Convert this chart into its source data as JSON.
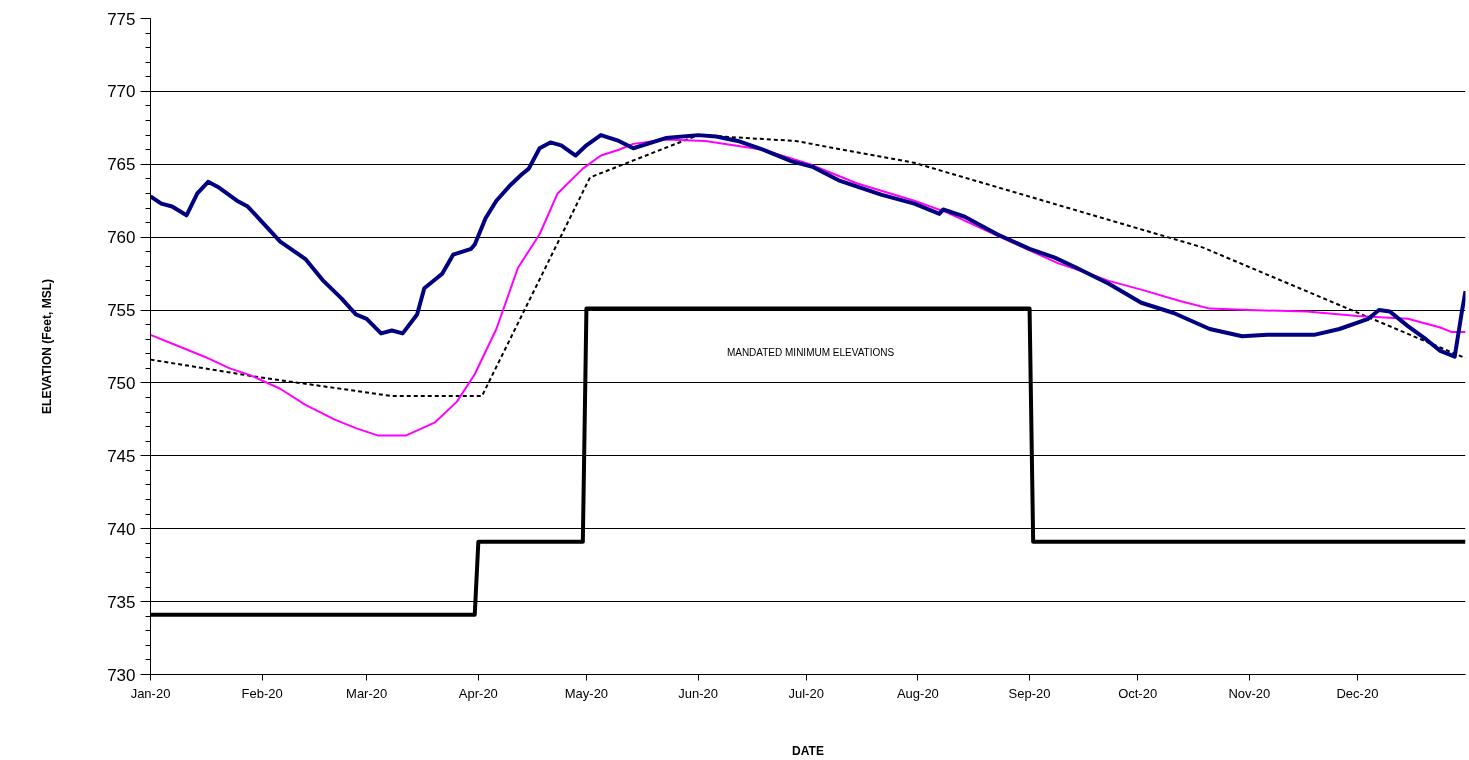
{
  "chart_data": {
    "type": "line",
    "xlabel": "DATE",
    "ylabel": "ELEVATION (Feet, MSL)",
    "xlim": [
      "2020-01-01",
      "2020-12-31"
    ],
    "xticks": [
      {
        "value": "2020-01-01",
        "label": "Jan-20"
      },
      {
        "value": "2020-02-01",
        "label": "Feb-20"
      },
      {
        "value": "2020-03-01",
        "label": "Mar-20"
      },
      {
        "value": "2020-04-01",
        "label": "Apr-20"
      },
      {
        "value": "2020-05-01",
        "label": "May-20"
      },
      {
        "value": "2020-06-01",
        "label": "Jun-20"
      },
      {
        "value": "2020-07-01",
        "label": "Jul-20"
      },
      {
        "value": "2020-08-01",
        "label": "Aug-20"
      },
      {
        "value": "2020-09-01",
        "label": "Sep-20"
      },
      {
        "value": "2020-10-01",
        "label": "Oct-20"
      },
      {
        "value": "2020-11-01",
        "label": "Nov-20"
      },
      {
        "value": "2020-12-01",
        "label": "Dec-20"
      }
    ],
    "ylim": [
      730,
      775
    ],
    "yticks": [
      730,
      735,
      740,
      745,
      750,
      755,
      760,
      765,
      770,
      775
    ],
    "grid": "y",
    "series": [
      {
        "color": "#000000",
        "line_style": "solid",
        "x": [
          "2020-01-01",
          "2020-03-31",
          "2020-04-01",
          "2020-04-30",
          "2020-05-01",
          "2020-09-01",
          "2020-09-02",
          "2020-12-31"
        ],
        "values": [
          734.1,
          734.1,
          739.1,
          739.1,
          755.1,
          755.1,
          739.1,
          739.1
        ]
      },
      {
        "color": "#000000",
        "line_style": "dashed",
        "x": [
          "2020-01-01",
          "2020-01-31",
          "2020-03-08",
          "2020-04-02",
          "2020-05-02",
          "2020-06-01",
          "2020-06-28",
          "2020-07-31",
          "2020-10-19",
          "2020-12-31"
        ],
        "values": [
          751.6,
          750.4,
          749.1,
          749.1,
          764.1,
          767.0,
          766.6,
          765.1,
          759.3,
          751.7
        ]
      },
      {
        "color": "#ff00ff",
        "line_style": "solid",
        "x": [
          "2020-01-01",
          "2020-01-09",
          "2020-01-16",
          "2020-01-23",
          "2020-01-29",
          "2020-02-06",
          "2020-02-13",
          "2020-02-21",
          "2020-02-27",
          "2020-03-04",
          "2020-03-12",
          "2020-03-20",
          "2020-03-26",
          "2020-03-31",
          "2020-04-06",
          "2020-04-12",
          "2020-04-18",
          "2020-04-23",
          "2020-04-30",
          "2020-05-05",
          "2020-05-10",
          "2020-05-14",
          "2020-05-23",
          "2020-06-03",
          "2020-06-19",
          "2020-07-02",
          "2020-07-15",
          "2020-07-31",
          "2020-08-09",
          "2020-08-23",
          "2020-09-09",
          "2020-09-14",
          "2020-09-23",
          "2020-10-02",
          "2020-10-13",
          "2020-10-21",
          "2020-11-01",
          "2020-11-17",
          "2020-12-01",
          "2020-12-15",
          "2020-12-24",
          "2020-12-27",
          "2020-12-31"
        ],
        "values": [
          753.3,
          752.5,
          751.8,
          751.0,
          750.5,
          749.6,
          748.5,
          747.5,
          746.9,
          746.4,
          746.4,
          747.3,
          748.7,
          750.6,
          753.7,
          757.9,
          760.2,
          763.0,
          764.7,
          765.6,
          766.0,
          766.4,
          766.7,
          766.6,
          766.0,
          765.0,
          763.7,
          762.5,
          761.7,
          760.1,
          758.2,
          757.8,
          757.0,
          756.4,
          755.6,
          755.1,
          755.0,
          754.9,
          754.6,
          754.4,
          753.8,
          753.5,
          753.5
        ]
      },
      {
        "color": "#000080",
        "line_style": "solid",
        "x": [
          "2020-01-01",
          "2020-01-04",
          "2020-01-07",
          "2020-01-11",
          "2020-01-14",
          "2020-01-17",
          "2020-01-20",
          "2020-01-25",
          "2020-01-28",
          "2020-02-06",
          "2020-02-13",
          "2020-02-18",
          "2020-02-23",
          "2020-02-27",
          "2020-03-01",
          "2020-03-05",
          "2020-03-08",
          "2020-03-11",
          "2020-03-15",
          "2020-03-17",
          "2020-03-20",
          "2020-03-22",
          "2020-03-25",
          "2020-03-30",
          "2020-03-31",
          "2020-04-03",
          "2020-04-06",
          "2020-04-10",
          "2020-04-13",
          "2020-04-15",
          "2020-04-18",
          "2020-04-21",
          "2020-04-24",
          "2020-04-28",
          "2020-05-01",
          "2020-05-05",
          "2020-05-10",
          "2020-05-14",
          "2020-05-23",
          "2020-06-01",
          "2020-06-06",
          "2020-06-12",
          "2020-06-19",
          "2020-06-27",
          "2020-07-03",
          "2020-07-10",
          "2020-07-16",
          "2020-07-22",
          "2020-07-31",
          "2020-08-07",
          "2020-08-08",
          "2020-08-14",
          "2020-08-23",
          "2020-09-01",
          "2020-09-08",
          "2020-09-14",
          "2020-09-23",
          "2020-10-02",
          "2020-10-11",
          "2020-10-21",
          "2020-10-30",
          "2020-11-06",
          "2020-11-19",
          "2020-11-26",
          "2020-12-04",
          "2020-12-07",
          "2020-12-10",
          "2020-12-15",
          "2020-12-20",
          "2020-12-24",
          "2020-12-28",
          "2020-12-30",
          "2020-12-31"
        ],
        "values": [
          762.8,
          762.3,
          762.1,
          761.5,
          763.0,
          763.8,
          763.4,
          762.5,
          762.1,
          759.7,
          758.5,
          757.0,
          755.8,
          754.7,
          754.4,
          753.4,
          753.6,
          753.4,
          754.7,
          756.5,
          757.1,
          757.5,
          758.8,
          759.2,
          759.5,
          761.3,
          762.5,
          763.6,
          764.3,
          764.7,
          766.1,
          766.5,
          766.3,
          765.6,
          766.3,
          767.0,
          766.6,
          766.1,
          766.8,
          767.0,
          766.9,
          766.6,
          766.0,
          765.2,
          764.8,
          763.9,
          763.4,
          762.9,
          762.3,
          761.6,
          761.9,
          761.4,
          760.2,
          759.2,
          758.6,
          757.9,
          756.8,
          755.5,
          754.8,
          753.7,
          753.2,
          753.3,
          753.3,
          753.7,
          754.4,
          755.0,
          754.9,
          753.9,
          753.0,
          752.2,
          751.8,
          754.9,
          756.3
        ]
      }
    ],
    "annotations": [
      "MANDATED MINIMUM ELEVATIONS"
    ]
  }
}
